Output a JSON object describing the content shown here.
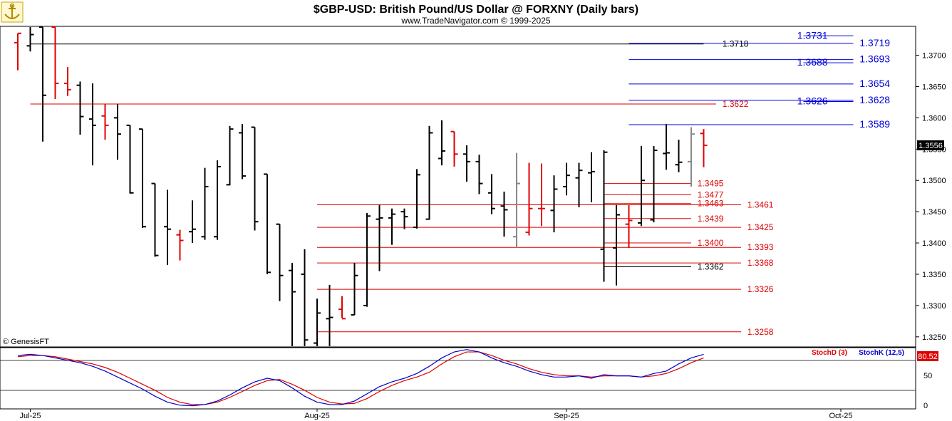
{
  "header": {
    "title": "$GBP-USD:  British Pound/US Dollar @ FORXNY  (Daily bars)",
    "subtitle": "www.TradeNavigator.com © 1999-2025",
    "credit": "© GenesisFT",
    "logo_icon": "anchor-logo-icon"
  },
  "colors": {
    "up_bar": "#000000",
    "down_bar": "#e00000",
    "neutral_bar": "#888888",
    "resistance": "#0000dd",
    "support": "#dd0000",
    "stoch_d": "#dd0000",
    "stoch_k": "#0000cc",
    "grid": "#000000"
  },
  "chart_data": {
    "type": "ohlc",
    "price_axis": {
      "ticks": [
        "1.3700",
        "1.3650",
        "1.3600",
        "1.3550",
        "1.3500",
        "1.3450",
        "1.3400",
        "1.3350",
        "1.3300",
        "1.3250"
      ],
      "range": [
        1.3235,
        1.3745
      ]
    },
    "last_price": "1.3556",
    "x_ticks": [
      {
        "label": "Jul-25",
        "bar": 1
      },
      {
        "label": "Aug-25",
        "bar": 24
      },
      {
        "label": "Sep-25",
        "bar": 44
      },
      {
        "label": "Oct-25",
        "bar": 66
      }
    ],
    "bars": [
      {
        "o": 1.372,
        "h": 1.3735,
        "l": 1.3676,
        "c": 1.3735,
        "col": "down"
      },
      {
        "o": 1.3715,
        "h": 1.3745,
        "l": 1.3706,
        "c": 1.3733,
        "col": "up"
      },
      {
        "o": 1.3745,
        "h": 1.3745,
        "l": 1.3562,
        "c": 1.3636,
        "col": "up"
      },
      {
        "o": 1.3745,
        "h": 1.3745,
        "l": 1.363,
        "c": 1.3655,
        "col": "down"
      },
      {
        "o": 1.3655,
        "h": 1.3681,
        "l": 1.3635,
        "c": 1.3645,
        "col": "down"
      },
      {
        "o": 1.3652,
        "h": 1.3658,
        "l": 1.3573,
        "c": 1.3602,
        "col": "up"
      },
      {
        "o": 1.3598,
        "h": 1.3655,
        "l": 1.3524,
        "c": 1.3588,
        "col": "up"
      },
      {
        "o": 1.3603,
        "h": 1.3622,
        "l": 1.3565,
        "c": 1.3588,
        "col": "down"
      },
      {
        "o": 1.36,
        "h": 1.3622,
        "l": 1.3533,
        "c": 1.3574,
        "col": "up"
      },
      {
        "o": 1.3588,
        "h": 1.3588,
        "l": 1.3479,
        "c": 1.348,
        "col": "up"
      },
      {
        "o": 1.3582,
        "h": 1.3582,
        "l": 1.3424,
        "c": 1.3426,
        "col": "up"
      },
      {
        "o": 1.3495,
        "h": 1.3495,
        "l": 1.3378,
        "c": 1.338,
        "col": "up"
      },
      {
        "o": 1.3426,
        "h": 1.3485,
        "l": 1.3365,
        "c": 1.3422,
        "col": "up"
      },
      {
        "o": 1.3413,
        "h": 1.3421,
        "l": 1.3372,
        "c": 1.3404,
        "col": "down"
      },
      {
        "o": 1.3418,
        "h": 1.3468,
        "l": 1.34,
        "c": 1.3422,
        "col": "up"
      },
      {
        "o": 1.341,
        "h": 1.352,
        "l": 1.3405,
        "c": 1.349,
        "col": "up"
      },
      {
        "o": 1.341,
        "h": 1.3532,
        "l": 1.3405,
        "c": 1.3522,
        "col": "up"
      },
      {
        "o": 1.3493,
        "h": 1.3587,
        "l": 1.3492,
        "c": 1.3582,
        "col": "up"
      },
      {
        "o": 1.3576,
        "h": 1.359,
        "l": 1.3502,
        "c": 1.3507,
        "col": "up"
      },
      {
        "o": 1.3585,
        "h": 1.3585,
        "l": 1.342,
        "c": 1.3434,
        "col": "up"
      },
      {
        "o": 1.351,
        "h": 1.351,
        "l": 1.335,
        "c": 1.3353,
        "col": "up"
      },
      {
        "o": 1.343,
        "h": 1.343,
        "l": 1.3307,
        "c": 1.3348,
        "col": "up"
      },
      {
        "o": 1.3356,
        "h": 1.3368,
        "l": 1.3235,
        "c": 1.3322,
        "col": "up"
      },
      {
        "o": 1.335,
        "h": 1.339,
        "l": 1.3235,
        "c": 1.3245,
        "col": "up"
      },
      {
        "o": 1.324,
        "h": 1.3311,
        "l": 1.3235,
        "c": 1.3288,
        "col": "up"
      },
      {
        "o": 1.3279,
        "h": 1.3333,
        "l": 1.3235,
        "c": 1.3281,
        "col": "up"
      },
      {
        "o": 1.3294,
        "h": 1.3315,
        "l": 1.328,
        "c": 1.3279,
        "col": "down"
      },
      {
        "o": 1.3285,
        "h": 1.3368,
        "l": 1.3285,
        "c": 1.3348,
        "col": "up"
      },
      {
        "o": 1.33,
        "h": 1.3448,
        "l": 1.3298,
        "c": 1.3443,
        "col": "up"
      },
      {
        "o": 1.3438,
        "h": 1.3461,
        "l": 1.3355,
        "c": 1.344,
        "col": "up"
      },
      {
        "o": 1.344,
        "h": 1.3455,
        "l": 1.3397,
        "c": 1.3446,
        "col": "up"
      },
      {
        "o": 1.345,
        "h": 1.3455,
        "l": 1.3422,
        "c": 1.3442,
        "col": "up"
      },
      {
        "o": 1.3425,
        "h": 1.3518,
        "l": 1.3423,
        "c": 1.3509,
        "col": "up"
      },
      {
        "o": 1.3438,
        "h": 1.3587,
        "l": 1.3437,
        "c": 1.3576,
        "col": "up"
      },
      {
        "o": 1.3535,
        "h": 1.3596,
        "l": 1.3524,
        "c": 1.3547,
        "col": "up"
      },
      {
        "o": 1.3578,
        "h": 1.3578,
        "l": 1.3522,
        "c": 1.3542,
        "col": "down"
      },
      {
        "o": 1.3542,
        "h": 1.3556,
        "l": 1.3498,
        "c": 1.353,
        "col": "up"
      },
      {
        "o": 1.353,
        "h": 1.3541,
        "l": 1.3478,
        "c": 1.3495,
        "col": "up"
      },
      {
        "o": 1.348,
        "h": 1.351,
        "l": 1.3446,
        "c": 1.3455,
        "col": "up"
      },
      {
        "o": 1.3459,
        "h": 1.3482,
        "l": 1.341,
        "c": 1.3453,
        "col": "up"
      },
      {
        "o": 1.341,
        "h": 1.3544,
        "l": 1.3392,
        "c": 1.3495,
        "col": "neutral"
      },
      {
        "o": 1.3417,
        "h": 1.3528,
        "l": 1.3412,
        "c": 1.3455,
        "col": "down"
      },
      {
        "o": 1.3455,
        "h": 1.3527,
        "l": 1.3427,
        "c": 1.3455,
        "col": "down"
      },
      {
        "o": 1.3452,
        "h": 1.3508,
        "l": 1.3417,
        "c": 1.3486,
        "col": "up"
      },
      {
        "o": 1.349,
        "h": 1.3528,
        "l": 1.3476,
        "c": 1.3508,
        "col": "up"
      },
      {
        "o": 1.3504,
        "h": 1.3528,
        "l": 1.3457,
        "c": 1.3516,
        "col": "up"
      },
      {
        "o": 1.3512,
        "h": 1.3545,
        "l": 1.3465,
        "c": 1.3514,
        "col": "up"
      },
      {
        "o": 1.339,
        "h": 1.3548,
        "l": 1.3338,
        "c": 1.3545,
        "col": "up"
      },
      {
        "o": 1.3392,
        "h": 1.3461,
        "l": 1.3332,
        "c": 1.3445,
        "col": "up"
      },
      {
        "o": 1.343,
        "h": 1.3461,
        "l": 1.3392,
        "c": 1.3436,
        "col": "down"
      },
      {
        "o": 1.3432,
        "h": 1.3555,
        "l": 1.3427,
        "c": 1.35,
        "col": "up"
      },
      {
        "o": 1.3437,
        "h": 1.3555,
        "l": 1.3433,
        "c": 1.3548,
        "col": "up"
      },
      {
        "o": 1.3543,
        "h": 1.359,
        "l": 1.3517,
        "c": 1.3544,
        "col": "up"
      },
      {
        "o": 1.3525,
        "h": 1.3565,
        "l": 1.3513,
        "c": 1.3529,
        "col": "up"
      },
      {
        "o": 1.353,
        "h": 1.3585,
        "l": 1.349,
        "c": 1.3574,
        "col": "neutral"
      },
      {
        "o": 1.3575,
        "h": 1.3582,
        "l": 1.3521,
        "c": 1.3556,
        "col": "down"
      }
    ],
    "levels": [
      {
        "label": "1.3731",
        "value": 1.3731,
        "color": "resistance",
        "x1": 63,
        "x2": 67,
        "text_x": 62.5
      },
      {
        "label": "1.3718",
        "value": 1.3718,
        "color": "grid",
        "x1": 1,
        "x2": 55,
        "text_x": 56.5
      },
      {
        "label": "1.3719",
        "value": 1.3719,
        "color": "resistance",
        "x1": 49,
        "x2": 67,
        "text_x": 67.5
      },
      {
        "label": "1.3693",
        "value": 1.3693,
        "color": "resistance",
        "x1": 49,
        "x2": 67,
        "text_x": 67.5
      },
      {
        "label": "1.3688",
        "value": 1.3688,
        "color": "resistance",
        "x1": 63,
        "x2": 67,
        "text_x": 62.5
      },
      {
        "label": "1.3654",
        "value": 1.3654,
        "color": "resistance",
        "x1": 49,
        "x2": 67,
        "text_x": 67.5
      },
      {
        "label": "1.3628",
        "value": 1.3628,
        "color": "resistance",
        "x1": 49,
        "x2": 67,
        "text_x": 67.5
      },
      {
        "label": "1.3626",
        "value": 1.3626,
        "color": "resistance",
        "x1": 63,
        "x2": 67,
        "text_x": 62.5
      },
      {
        "label": "1.3622",
        "value": 1.3622,
        "color": "support",
        "x1": 1,
        "x2": 56,
        "text_x": 56.5
      },
      {
        "label": "1.3589",
        "value": 1.3589,
        "color": "resistance",
        "x1": 49,
        "x2": 67,
        "text_x": 67.5
      },
      {
        "label": "1.3495",
        "value": 1.3495,
        "color": "support",
        "x1": 47,
        "x2": 54,
        "text_x": 54.5
      },
      {
        "label": "1.3477",
        "value": 1.3477,
        "color": "support",
        "x1": 47,
        "x2": 54,
        "text_x": 54.5
      },
      {
        "label": "1.3463",
        "value": 1.3463,
        "color": "support",
        "x1": 47,
        "x2": 54,
        "text_x": 54.5
      },
      {
        "label": "1.3461",
        "value": 1.3461,
        "color": "support",
        "x1": 24,
        "x2": 58,
        "text_x": 58.5
      },
      {
        "label": "1.3439",
        "value": 1.3439,
        "color": "support",
        "x1": 47,
        "x2": 54,
        "text_x": 54.5
      },
      {
        "label": "1.3425",
        "value": 1.3425,
        "color": "support",
        "x1": 24,
        "x2": 58,
        "text_x": 58.5
      },
      {
        "label": "1.3400",
        "value": 1.34,
        "color": "support",
        "x1": 47,
        "x2": 54,
        "text_x": 54.5
      },
      {
        "label": "1.3393",
        "value": 1.3393,
        "color": "support",
        "x1": 24,
        "x2": 58,
        "text_x": 58.5
      },
      {
        "label": "1.3368",
        "value": 1.3368,
        "color": "support",
        "x1": 24,
        "x2": 58,
        "text_x": 58.5
      },
      {
        "label": "1.3362",
        "value": 1.3362,
        "color": "grid",
        "x1": 47,
        "x2": 54,
        "text_x": 54.5
      },
      {
        "label": "1.3326",
        "value": 1.3326,
        "color": "support",
        "x1": 24,
        "x2": 58,
        "text_x": 58.5
      },
      {
        "label": "1.3258",
        "value": 1.3258,
        "color": "support",
        "x1": 24,
        "x2": 58,
        "text_x": 58.5
      }
    ],
    "stochastic": {
      "legend_d": "StochD (3)",
      "legend_k": "StochK (12,5)",
      "last_value": "80.52",
      "ticks": [
        "50",
        "0"
      ],
      "overbought": 80,
      "oversold": 20,
      "k": [
        88,
        90,
        88,
        84,
        80,
        76,
        70,
        62,
        52,
        42,
        32,
        20,
        10,
        5,
        4,
        6,
        12,
        22,
        34,
        44,
        50,
        46,
        34,
        20,
        10,
        6,
        6,
        12,
        24,
        36,
        44,
        50,
        58,
        70,
        84,
        94,
        98,
        94,
        84,
        76,
        70,
        62,
        56,
        52,
        52,
        54,
        50,
        56,
        54,
        54,
        52,
        58,
        62,
        74,
        84,
        90
      ],
      "d": [
        86,
        88,
        88,
        86,
        82,
        78,
        74,
        68,
        60,
        50,
        40,
        30,
        18,
        10,
        6,
        6,
        10,
        18,
        28,
        38,
        46,
        48,
        40,
        30,
        18,
        10,
        7,
        8,
        16,
        28,
        38,
        46,
        52,
        60,
        74,
        86,
        94,
        94,
        88,
        80,
        74,
        66,
        60,
        56,
        54,
        54,
        52,
        54,
        54,
        54,
        52,
        54,
        58,
        66,
        76,
        84
      ]
    }
  }
}
